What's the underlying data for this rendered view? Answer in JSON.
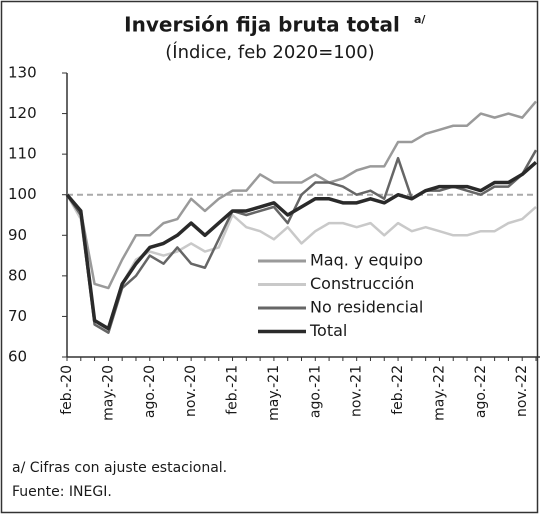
{
  "chart_data": {
    "type": "line",
    "title": "Inversión fija bruta total",
    "title_superscript": "a/",
    "subtitle": "(Índice, feb 2020=100)",
    "categories": [
      "feb.-20",
      null,
      null,
      "may.-20",
      null,
      null,
      "ago.-20",
      null,
      null,
      "nov.-20",
      null,
      null,
      "feb.-21",
      null,
      null,
      "may.-21",
      null,
      null,
      "ago.-21",
      null,
      null,
      "nov.-21",
      null,
      null,
      "feb.-22",
      null,
      null,
      "may.-22",
      null,
      null,
      "ago.-22",
      null,
      null,
      "nov.-22",
      null
    ],
    "series": [
      {
        "name": "Maq. y equipo",
        "color": "#9a9a9a",
        "values": [
          100,
          96,
          78,
          77,
          84,
          90,
          90,
          93,
          94,
          99,
          96,
          99,
          101,
          101,
          105,
          103,
          103,
          103,
          105,
          103,
          104,
          106,
          107,
          107,
          113,
          113,
          115,
          116,
          117,
          117,
          120,
          119,
          120,
          119,
          123
        ]
      },
      {
        "name": "Construcción",
        "color": "#c9c9c9",
        "values": [
          100,
          94,
          69,
          66,
          78,
          84,
          86,
          85,
          86,
          88,
          86,
          87,
          95,
          92,
          91,
          89,
          92,
          88,
          91,
          93,
          93,
          92,
          93,
          90,
          93,
          91,
          92,
          91,
          90,
          90,
          91,
          91,
          93,
          94,
          97
        ]
      },
      {
        "name": "No residencial",
        "color": "#666666",
        "values": [
          100,
          95,
          68,
          66,
          77,
          80,
          85,
          83,
          87,
          83,
          82,
          89,
          96,
          95,
          96,
          97,
          93,
          100,
          103,
          103,
          102,
          100,
          101,
          99,
          109,
          99,
          101,
          101,
          102,
          101,
          100,
          102,
          102,
          105,
          111
        ]
      },
      {
        "name": "Total",
        "color": "#2a2a2a",
        "values": [
          100,
          96,
          69,
          67,
          78,
          83,
          87,
          88,
          90,
          93,
          90,
          93,
          96,
          96,
          97,
          98,
          95,
          97,
          99,
          99,
          98,
          98,
          99,
          98,
          100,
          99,
          101,
          102,
          102,
          102,
          101,
          103,
          103,
          105,
          108
        ]
      }
    ],
    "reference_line": 100,
    "ylim": [
      60,
      130
    ],
    "yticks": [
      60,
      70,
      80,
      90,
      100,
      110,
      120,
      130
    ],
    "notes": [
      "a/ Cifras con ajuste estacional.",
      "Fuente: INEGI."
    ]
  }
}
